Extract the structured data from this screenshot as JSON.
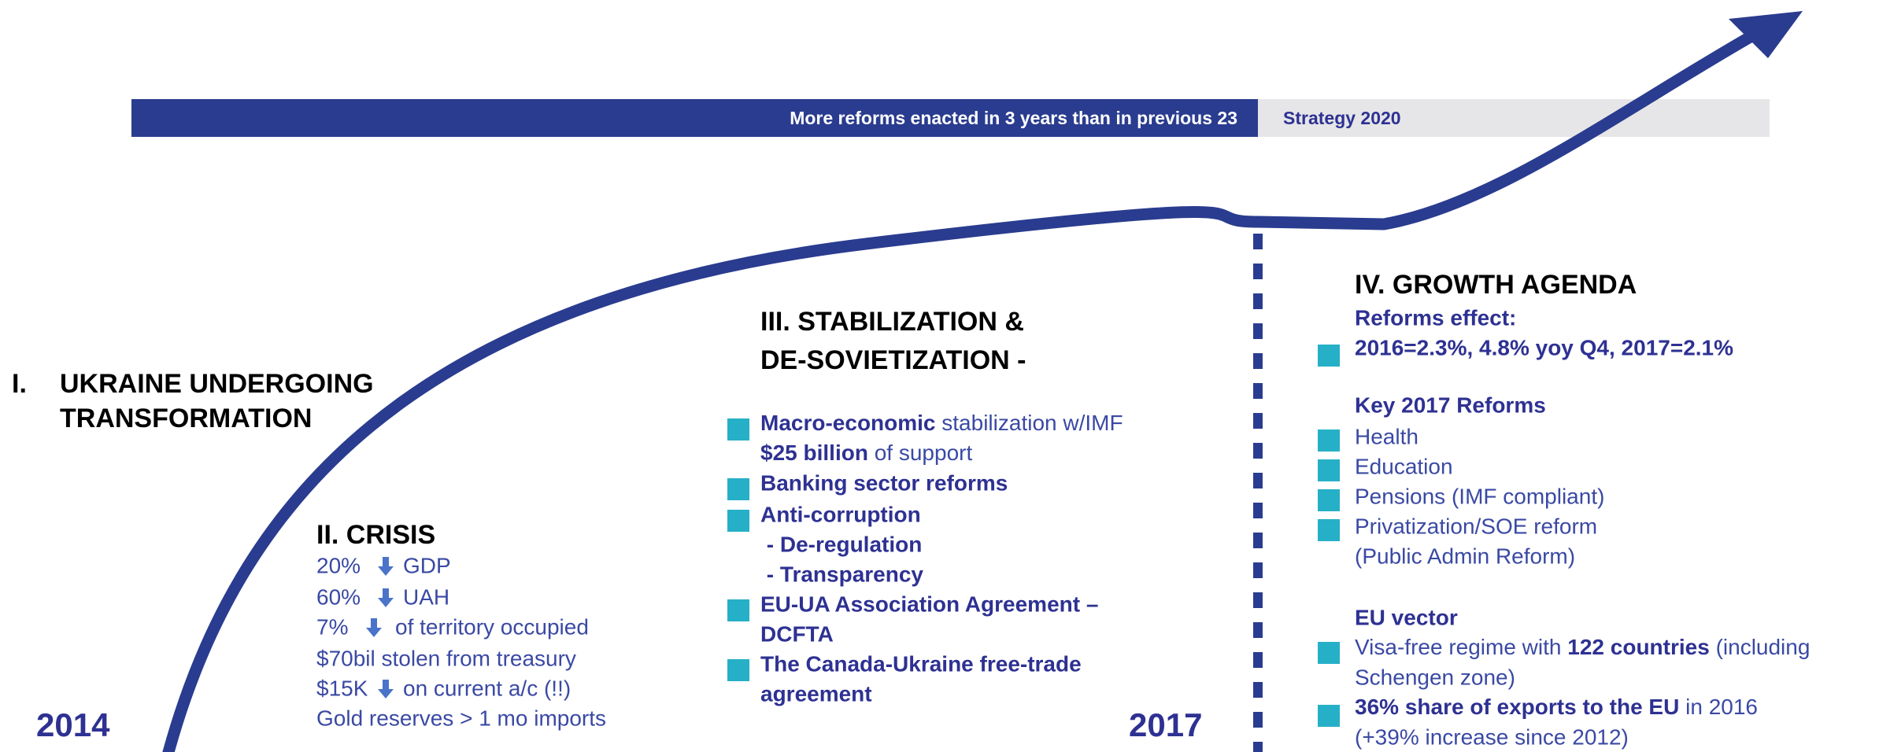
{
  "banner": {
    "reforms": "More reforms enacted in 3 years than in previous 23",
    "strategy": "Strategy 2020"
  },
  "years": [
    "2014",
    "2017"
  ],
  "section1": {
    "number": "I.",
    "title": [
      "UKRAINE UNDERGOING",
      "TRANSFORMATION"
    ]
  },
  "section2": {
    "title": "II. CRISIS",
    "items": [
      {
        "value": "20%",
        "label": "GDP"
      },
      {
        "value": "60%",
        "label": "UAH"
      },
      {
        "value": "7%",
        "label": "of territory occupied"
      },
      {
        "text": "$70bil stolen from treasury"
      },
      {
        "value": "$15K",
        "label": "on current a/c (!!)"
      },
      {
        "text": "Gold reserves > 1 mo imports"
      }
    ]
  },
  "section3": {
    "title": [
      "III. STABILIZATION &",
      "DE-SOVIETIZATION -"
    ],
    "lines": [
      [
        "Macro-economic",
        " stabilization w/IMF"
      ],
      [
        "$25 billion",
        " of support"
      ],
      [
        "Banking sector reforms"
      ],
      [
        "Anti-corruption"
      ],
      [
        " - De-regulation"
      ],
      [
        " - Transparency"
      ],
      [
        "EU-UA Association Agreement –"
      ],
      [
        "DCFTA"
      ],
      [
        "The Canada-Ukraine free-trade"
      ],
      [
        "agreement"
      ]
    ]
  },
  "section4": {
    "title": "IV. GROWTH AGENDA",
    "effect_label": "Reforms effect:",
    "effect": "2016=2.3%, 4.8% yoy Q4, 2017=2.1%",
    "reforms_title": "Key 2017 Reforms",
    "reforms": [
      "Health",
      "Education",
      "Pensions (IMF compliant)",
      "Privatization/SOE reform",
      "(Public Admin Reform)"
    ],
    "eu_title": "EU vector",
    "eu_lines": [
      [
        "Visa-free regime with ",
        "122 countries",
        " (including"
      ],
      [
        "Schengen zone)"
      ],
      [
        "36% share of exports to the EU",
        " in 2016"
      ],
      [
        "(+39% increase since 2012)"
      ]
    ]
  }
}
